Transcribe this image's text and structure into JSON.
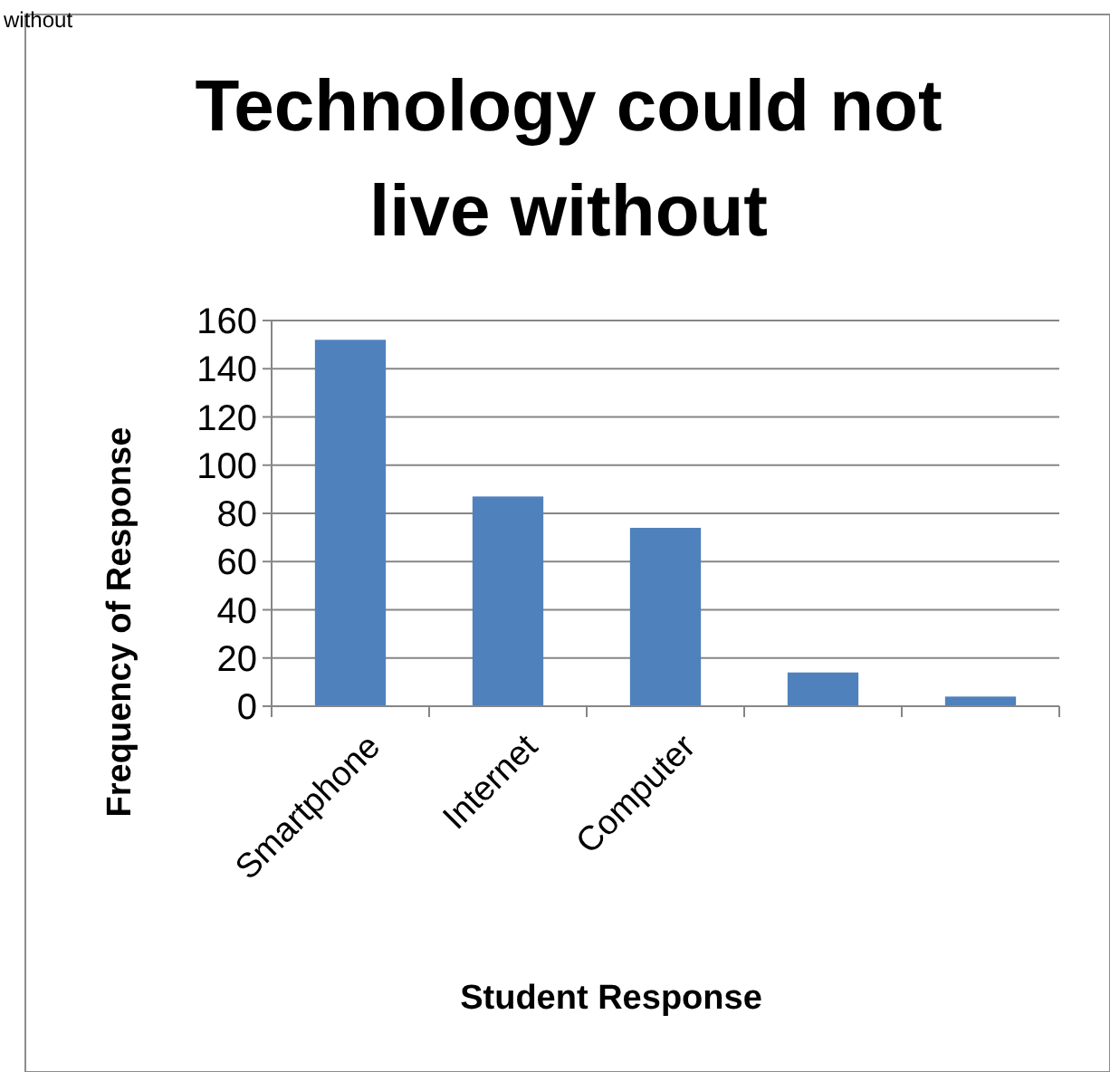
{
  "chart_data": {
    "type": "bar",
    "title": "Technology could not live without",
    "xlabel": "Student Response",
    "ylabel": "Frequency of Response",
    "annotations": [
      "without"
    ],
    "categories": [
      "Smartphone",
      "Internet",
      "Computer",
      null,
      null
    ],
    "values": [
      152,
      87,
      74,
      14,
      4
    ],
    "color": "#4f81bd",
    "ylim": [
      0,
      160
    ],
    "yticks": [
      0,
      20,
      40,
      60,
      80,
      100,
      120,
      140,
      160
    ],
    "grid": "y"
  }
}
